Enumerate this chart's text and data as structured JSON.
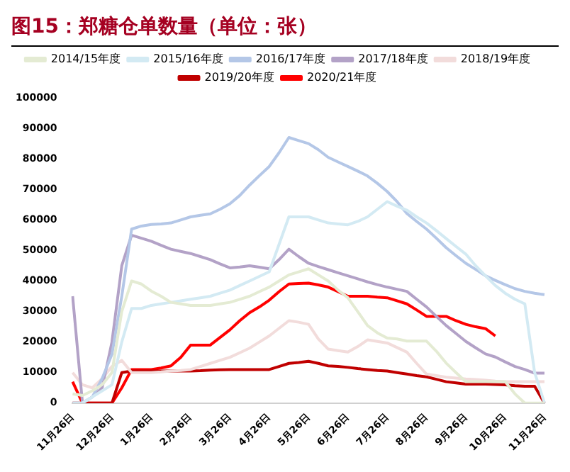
{
  "chart_data": {
    "type": "line",
    "title": "图15：郑糖仓单数量（单位：张）",
    "categories": [
      "11月26日",
      null,
      null,
      null,
      "12月26日",
      null,
      null,
      null,
      "1月26日",
      null,
      null,
      null,
      "2月26日",
      null,
      null,
      null,
      "3月26日",
      null,
      null,
      null,
      "4月26日",
      null,
      null,
      null,
      "5月26日",
      null,
      null,
      null,
      "6月26日",
      null,
      null,
      null,
      "7月26日",
      null,
      null,
      null,
      "8月26日",
      null,
      null,
      null,
      "9月26日",
      null,
      null,
      null,
      "10月26日",
      null,
      null,
      null,
      "11月26日"
    ],
    "series": [
      {
        "name": "2014/15年度",
        "color": "#e4ebd3",
        "values": [
          3000,
          2500,
          4000,
          6000,
          10000,
          30000,
          40000,
          39000,
          36700,
          35000,
          33000,
          32500,
          32000,
          32000,
          32000,
          32500,
          33000,
          34000,
          35000,
          36500,
          38000,
          40000,
          42000,
          43000,
          44000,
          42000,
          40000,
          37000,
          34500,
          30000,
          25400,
          23000,
          21300,
          21000,
          20300,
          20300,
          20300,
          17000,
          13100,
          10000,
          7000,
          7000,
          7000,
          7000,
          7000,
          3000,
          0,
          0,
          0
        ]
      },
      {
        "name": "2015/16年度",
        "color": "#d3eaf3",
        "values": [
          0,
          0,
          2000,
          4000,
          6000,
          20000,
          31000,
          31000,
          32000,
          32500,
          33000,
          33500,
          34000,
          34500,
          35000,
          36000,
          37000,
          38500,
          40000,
          41500,
          43000,
          52000,
          61000,
          61000,
          61000,
          60000,
          59000,
          58700,
          58400,
          59500,
          61000,
          63500,
          66000,
          64500,
          63200,
          61000,
          59000,
          56500,
          53900,
          51300,
          48800,
          45000,
          41700,
          38500,
          36000,
          34000,
          32500,
          10000,
          0
        ]
      },
      {
        "name": "2016/17年度",
        "color": "#b4c7e7",
        "values": [
          0,
          0,
          2000,
          8000,
          16000,
          35000,
          57000,
          58000,
          58500,
          58700,
          59000,
          60000,
          61000,
          61500,
          62000,
          63500,
          65300,
          68000,
          71400,
          74500,
          77500,
          82000,
          87000,
          86000,
          85000,
          83000,
          80500,
          79000,
          77500,
          76000,
          74400,
          72000,
          69300,
          66000,
          62100,
          59500,
          57000,
          54000,
          50900,
          48300,
          45800,
          43800,
          41700,
          40200,
          38800,
          37500,
          36600,
          36000,
          35500
        ]
      },
      {
        "name": "2017/18年度",
        "color": "#b3a2c7",
        "values": [
          35000,
          0,
          2000,
          5000,
          20000,
          45000,
          55000,
          54000,
          53000,
          51700,
          50400,
          49700,
          49000,
          48000,
          47000,
          45600,
          44300,
          44600,
          45000,
          44500,
          44000,
          47000,
          50400,
          48000,
          45800,
          44700,
          43700,
          42700,
          41700,
          40700,
          39700,
          38800,
          38000,
          37300,
          36600,
          34000,
          31500,
          28400,
          25400,
          22800,
          20200,
          18100,
          16100,
          15100,
          13500,
          12000,
          11000,
          9800,
          9800
        ]
      },
      {
        "name": "2018/19年度",
        "color": "#f2dcdb",
        "values": [
          10000,
          6000,
          5000,
          8000,
          12000,
          14000,
          10000,
          10000,
          10000,
          10200,
          10500,
          10700,
          11000,
          12000,
          13000,
          14000,
          15000,
          16500,
          18000,
          20000,
          22000,
          24500,
          27000,
          26500,
          25800,
          21000,
          17700,
          17200,
          16700,
          18500,
          20700,
          20200,
          19700,
          18200,
          16700,
          13000,
          9500,
          9000,
          8500,
          8200,
          7900,
          7700,
          7500,
          7200,
          7000,
          7000,
          7000,
          7000,
          7000
        ]
      },
      {
        "name": "2019/20年度",
        "color": "#c00000",
        "values": [
          0,
          0,
          0,
          0,
          0,
          10000,
          10500,
          10500,
          10500,
          10500,
          10500,
          10500,
          10500,
          10600,
          10800,
          10900,
          11000,
          11000,
          11000,
          11000,
          11000,
          12000,
          13000,
          13300,
          13700,
          13000,
          12200,
          12000,
          11700,
          11300,
          11000,
          10700,
          10500,
          10000,
          9500,
          9000,
          8600,
          7800,
          7000,
          6600,
          6200,
          6200,
          6200,
          6100,
          6000,
          5700,
          5500,
          5500,
          0
        ]
      },
      {
        "name": "2020/21年度",
        "color": "#ff0000",
        "values": [
          7000,
          0,
          0,
          0,
          0,
          5000,
          11000,
          11000,
          11000,
          11500,
          12200,
          15000,
          19000,
          19000,
          19000,
          21500,
          24000,
          27000,
          29600,
          31500,
          33700,
          36500,
          39000,
          39200,
          39300,
          38700,
          38000,
          36500,
          35000,
          35000,
          35000,
          34700,
          34500,
          33500,
          32500,
          30500,
          28400,
          28400,
          28400,
          27000,
          25800,
          25000,
          24400,
          22000,
          null,
          null,
          null,
          null,
          null
        ]
      }
    ],
    "ylim": [
      0,
      100000
    ],
    "yticks": [
      0,
      10000,
      20000,
      30000,
      40000,
      50000,
      60000,
      70000,
      80000,
      90000,
      100000
    ],
    "grid": false,
    "legend": "top",
    "marker": "none",
    "line_style": "solid"
  }
}
